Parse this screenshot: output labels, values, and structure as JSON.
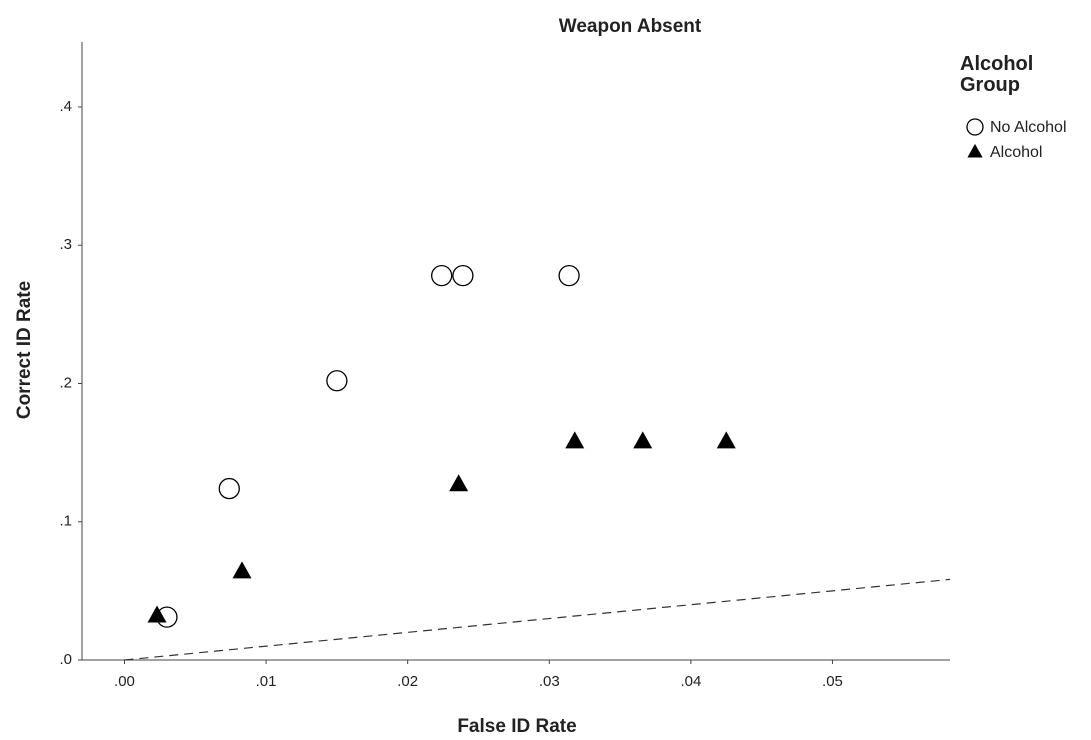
{
  "chart_data": {
    "type": "scatter",
    "title": "Weapon Absent",
    "x_label": "False ID Rate",
    "y_label": "Correct ID Rate",
    "legend_title": "Alcohol Group",
    "legend_position": "right",
    "xlim": [
      -0.003,
      0.0583
    ],
    "ylim": [
      0,
      0.447
    ],
    "xticks": [
      {
        "value": 0,
        "label": ".00"
      },
      {
        "value": 0.01,
        "label": ".01"
      },
      {
        "value": 0.02,
        "label": ".02"
      },
      {
        "value": 0.03,
        "label": ".03"
      },
      {
        "value": 0.04,
        "label": ".04"
      },
      {
        "value": 0.05,
        "label": ".05"
      }
    ],
    "yticks": [
      {
        "value": 0,
        "label": ".0"
      },
      {
        "value": 0.1,
        "label": ".1"
      },
      {
        "value": 0.2,
        "label": ".2"
      },
      {
        "value": 0.3,
        "label": ".3"
      },
      {
        "value": 0.4,
        "label": ".4"
      }
    ],
    "diagonal_line": true,
    "series": [
      {
        "name": "No Alcohol",
        "marker": "circle",
        "color": "#000000",
        "x": [
          0.003,
          0.0074,
          0.015,
          0.0224,
          0.0239,
          0.0314
        ],
        "values": [
          0.031,
          0.124,
          0.202,
          0.278,
          0.278,
          0.278
        ]
      },
      {
        "name": "Alcohol",
        "marker": "triangle",
        "color": "#000000",
        "x": [
          0.0023,
          0.0083,
          0.0236,
          0.0318,
          0.0366,
          0.0425
        ],
        "values": [
          0.032,
          0.064,
          0.127,
          0.158,
          0.158,
          0.158
        ]
      }
    ]
  }
}
